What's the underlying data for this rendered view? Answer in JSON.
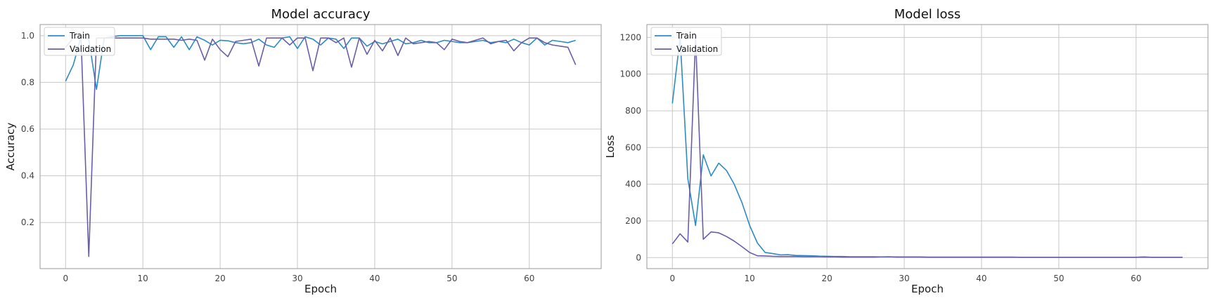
{
  "chart_data": [
    {
      "type": "line",
      "title": "Model accuracy",
      "xlabel": "Epoch",
      "ylabel": "Accuracy",
      "xlim": [
        -3.3,
        69.3
      ],
      "ylim": [
        0.0025,
        1.0475
      ],
      "xticks": [
        0,
        10,
        20,
        30,
        40,
        50,
        60
      ],
      "yticks": [
        0.2,
        0.4,
        0.6,
        0.8,
        1.0
      ],
      "ytick_labels": [
        "0.2",
        "0.4",
        "0.6",
        "0.8",
        "1.0"
      ],
      "grid": true,
      "legend_position": "upper-left",
      "x": [
        0,
        1,
        2,
        3,
        4,
        5,
        6,
        7,
        8,
        9,
        10,
        11,
        12,
        13,
        14,
        15,
        16,
        17,
        18,
        19,
        20,
        21,
        22,
        23,
        24,
        25,
        26,
        27,
        28,
        29,
        30,
        31,
        32,
        33,
        34,
        35,
        36,
        37,
        38,
        39,
        40,
        41,
        42,
        43,
        44,
        45,
        46,
        47,
        48,
        49,
        50,
        51,
        52,
        53,
        54,
        55,
        56,
        57,
        58,
        59,
        60,
        61,
        62,
        63,
        64,
        65,
        66
      ],
      "series": [
        {
          "name": "Train",
          "color": "#2b8cc4",
          "values": [
            0.805,
            0.875,
            0.995,
            0.985,
            0.77,
            0.99,
            0.995,
            1.0,
            1.0,
            1.0,
            1.0,
            0.94,
            0.995,
            0.995,
            0.95,
            0.995,
            0.94,
            0.995,
            0.98,
            0.96,
            0.98,
            0.978,
            0.97,
            0.965,
            0.97,
            0.985,
            0.96,
            0.95,
            0.99,
            0.995,
            0.945,
            0.995,
            0.985,
            0.96,
            0.99,
            0.985,
            0.945,
            0.99,
            0.99,
            0.955,
            0.975,
            0.965,
            0.975,
            0.985,
            0.965,
            0.97,
            0.98,
            0.97,
            0.97,
            0.98,
            0.975,
            0.97,
            0.97,
            0.975,
            0.98,
            0.97,
            0.975,
            0.97,
            0.985,
            0.97,
            0.96,
            0.99,
            0.96,
            0.98,
            0.975,
            0.97,
            0.98
          ]
        },
        {
          "name": "Validation",
          "color": "#6a5ea8",
          "values": [
            0.95,
            0.99,
            0.99,
            0.055,
            0.99,
            0.99,
            0.99,
            0.99,
            0.99,
            0.99,
            0.99,
            0.985,
            0.985,
            0.985,
            0.985,
            0.98,
            0.985,
            0.98,
            0.895,
            0.985,
            0.94,
            0.91,
            0.975,
            0.98,
            0.985,
            0.87,
            0.99,
            0.99,
            0.99,
            0.96,
            0.99,
            0.99,
            0.85,
            0.99,
            0.99,
            0.97,
            0.99,
            0.865,
            0.99,
            0.92,
            0.98,
            0.935,
            0.99,
            0.915,
            0.99,
            0.965,
            0.97,
            0.975,
            0.97,
            0.94,
            0.985,
            0.975,
            0.97,
            0.98,
            0.99,
            0.965,
            0.975,
            0.98,
            0.935,
            0.97,
            0.99,
            0.99,
            0.97,
            0.96,
            0.955,
            0.95,
            0.875
          ]
        }
      ]
    },
    {
      "type": "line",
      "title": "Model loss",
      "xlabel": "Epoch",
      "ylabel": "Loss",
      "xlim": [
        -3.3,
        69.3
      ],
      "ylim": [
        -60,
        1270
      ],
      "xticks": [
        0,
        10,
        20,
        30,
        40,
        50,
        60
      ],
      "yticks": [
        0,
        200,
        400,
        600,
        800,
        1000,
        1200
      ],
      "ytick_labels": [
        "0",
        "200",
        "400",
        "600",
        "800",
        "1000",
        "1200"
      ],
      "grid": true,
      "legend_position": "upper-left",
      "x": [
        0,
        1,
        2,
        3,
        4,
        5,
        6,
        7,
        8,
        9,
        10,
        11,
        12,
        13,
        14,
        15,
        16,
        17,
        18,
        19,
        20,
        21,
        22,
        23,
        24,
        25,
        26,
        27,
        28,
        29,
        30,
        31,
        32,
        33,
        34,
        35,
        36,
        37,
        38,
        39,
        40,
        41,
        42,
        43,
        44,
        45,
        46,
        47,
        48,
        49,
        50,
        51,
        52,
        53,
        54,
        55,
        56,
        57,
        58,
        59,
        60,
        61,
        62,
        63,
        64,
        65,
        66
      ],
      "series": [
        {
          "name": "Train",
          "color": "#2b8cc4",
          "values": [
            840,
            1200,
            430,
            175,
            560,
            445,
            515,
            475,
            400,
            300,
            175,
            80,
            28,
            22,
            15,
            16,
            12,
            11,
            10,
            8,
            7,
            6,
            6,
            5,
            5,
            5,
            5,
            4,
            4,
            4,
            4,
            4,
            4,
            3,
            3,
            3,
            3,
            3,
            3,
            3,
            3,
            3,
            3,
            3,
            3,
            2,
            2,
            2,
            2,
            2,
            2,
            2,
            2,
            2,
            2,
            2,
            2,
            2,
            2,
            2,
            2,
            2,
            2,
            2,
            2,
            2,
            2
          ]
        },
        {
          "name": "Validation",
          "color": "#6a5ea8",
          "values": [
            75,
            130,
            85,
            1200,
            100,
            140,
            135,
            115,
            90,
            60,
            28,
            10,
            9,
            7,
            6,
            6,
            6,
            5,
            5,
            5,
            4,
            4,
            3,
            3,
            3,
            3,
            3,
            4,
            5,
            3,
            3,
            3,
            3,
            2,
            2,
            2,
            2,
            2,
            2,
            2,
            2,
            2,
            2,
            2,
            2,
            2,
            2,
            2,
            2,
            2,
            2,
            2,
            2,
            2,
            2,
            2,
            2,
            2,
            2,
            2,
            2,
            4,
            2,
            2,
            2,
            2,
            2
          ]
        }
      ]
    }
  ]
}
